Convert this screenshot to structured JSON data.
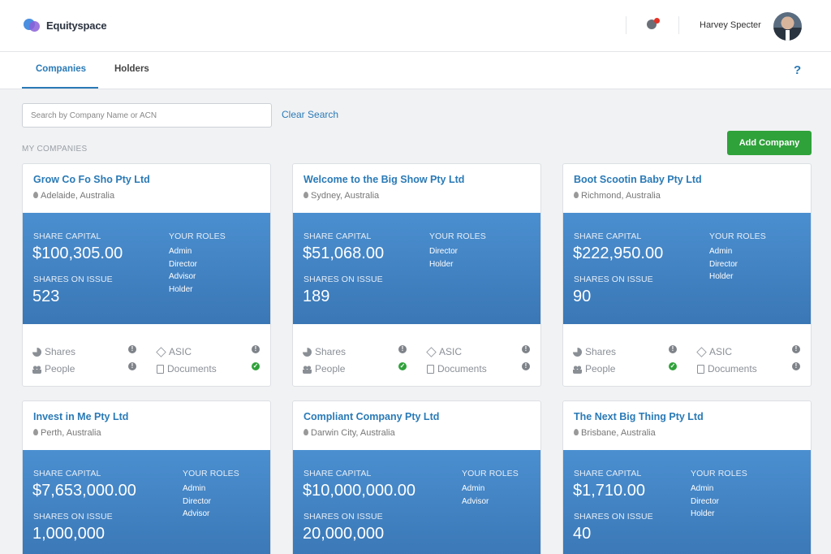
{
  "app": {
    "name": "Equityspace"
  },
  "header": {
    "user_name": "Harvey Specter"
  },
  "tabs": [
    {
      "label": "Companies",
      "active": true
    },
    {
      "label": "Holders",
      "active": false
    }
  ],
  "help_label": "?",
  "search": {
    "placeholder": "Search by Company Name or ACN",
    "value": "",
    "clear_label": "Clear Search"
  },
  "section_title": "MY COMPANIES",
  "add_button_label": "Add Company",
  "labels": {
    "share_capital": "SHARE CAPITAL",
    "your_roles": "YOUR ROLES",
    "shares_on_issue": "SHARES ON ISSUE",
    "shares": "Shares",
    "asic": "ASIC",
    "people": "People",
    "documents": "Documents"
  },
  "status_icons": {
    "warn": "!",
    "ok": "✓"
  },
  "colors": {
    "accent": "#2a7ab6",
    "add_button": "#2fa23a",
    "card_body": "#3f80c1"
  },
  "companies": [
    {
      "name": "Grow Co Fo Sho Pty Ltd",
      "location": "Adelaide, Australia",
      "share_capital": "$100,305.00",
      "shares_on_issue": "523",
      "roles": [
        "Admin",
        "Director",
        "Advisor",
        "Holder"
      ],
      "status": {
        "shares": "warn",
        "asic": "warn",
        "people": "warn",
        "documents": "ok"
      }
    },
    {
      "name": "Welcome to the Big Show Pty Ltd",
      "location": "Sydney, Australia",
      "share_capital": "$51,068.00",
      "shares_on_issue": "189",
      "roles": [
        "Director",
        "Holder"
      ],
      "status": {
        "shares": "warn",
        "asic": "warn",
        "people": "ok",
        "documents": "warn"
      }
    },
    {
      "name": "Boot Scootin Baby Pty Ltd",
      "location": "Richmond, Australia",
      "share_capital": "$222,950.00",
      "shares_on_issue": "90",
      "roles": [
        "Admin",
        "Director",
        "Holder"
      ],
      "status": {
        "shares": "warn",
        "asic": "warn",
        "people": "ok",
        "documents": "warn"
      }
    },
    {
      "name": "Invest in Me Pty Ltd",
      "location": "Perth, Australia",
      "share_capital": "$7,653,000.00",
      "shares_on_issue": "1,000,000",
      "roles": [
        "Admin",
        "Director",
        "Advisor"
      ]
    },
    {
      "name": "Compliant Company Pty Ltd",
      "location": "Darwin City, Australia",
      "share_capital": "$10,000,000.00",
      "shares_on_issue": "20,000,000",
      "roles": [
        "Admin",
        "Advisor"
      ]
    },
    {
      "name": "The Next Big Thing Pty Ltd",
      "location": "Brisbane, Australia",
      "share_capital": "$1,710.00",
      "shares_on_issue": "40",
      "roles": [
        "Admin",
        "Director",
        "Holder"
      ]
    }
  ]
}
